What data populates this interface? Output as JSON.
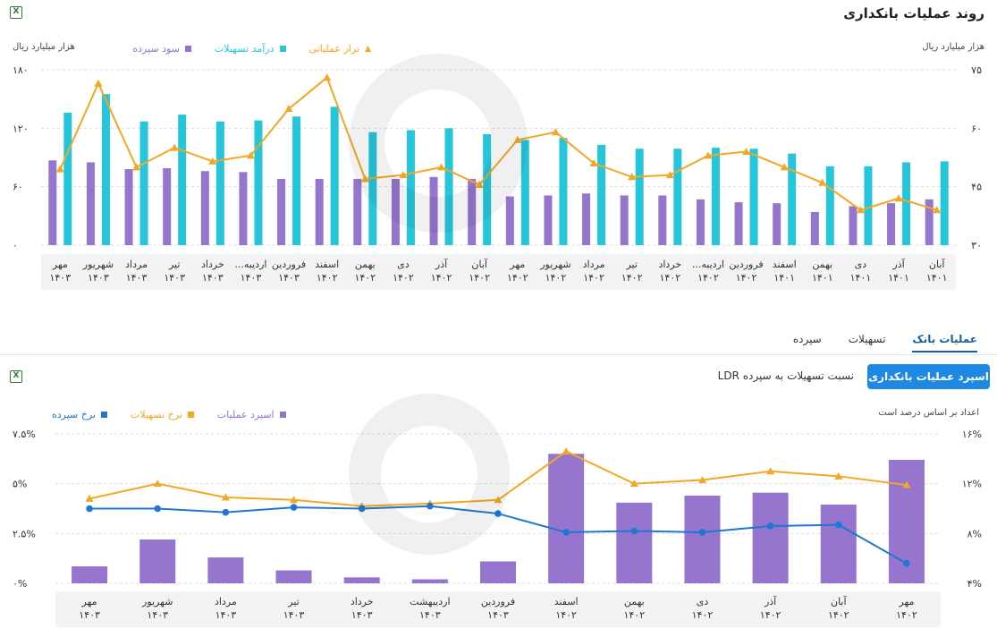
{
  "top": {
    "title": "روند عملیات بانکداری",
    "unit_left": "هزار میلیارد ریال",
    "unit_right": "هزار میلیارد ریال",
    "legend": [
      {
        "label": "تراز عملیاتی",
        "color": "#f5a623",
        "shape": "triangle"
      },
      {
        "label": "درآمد تسهیلات",
        "color": "#26c6da",
        "shape": "square"
      },
      {
        "label": "سود سپرده",
        "color": "#9575cd",
        "shape": "square"
      }
    ]
  },
  "tabs": [
    {
      "label": "سپرده",
      "active": false
    },
    {
      "label": "تسهیلات",
      "active": false
    },
    {
      "label": "عملیات بانک",
      "active": true
    }
  ],
  "bottom": {
    "primary_button": "اسپرد عملیات بانکداری",
    "secondary_link": "نسبت تسهیلات به سپرده LDR",
    "unit_note": "اعداد بر اساس درصد است",
    "legend": [
      {
        "label": "اسپرد عملیات",
        "color": "#9575cd",
        "shape": "square"
      },
      {
        "label": "نرخ تسهیلات",
        "color": "#f5a623",
        "shape": "square"
      },
      {
        "label": "نرخ سپرده",
        "color": "#1e78d2",
        "shape": "square"
      }
    ]
  },
  "chart_data": [
    {
      "type": "bar",
      "categories": [
        [
          "آبان",
          "۱۴۰۱"
        ],
        [
          "آذر",
          "۱۴۰۱"
        ],
        [
          "دی",
          "۱۴۰۱"
        ],
        [
          "بهمن",
          "۱۴۰۱"
        ],
        [
          "اسفند",
          "۱۴۰۱"
        ],
        [
          "فروردین",
          "۱۴۰۲"
        ],
        [
          "اردیبه...",
          "۱۴۰۲"
        ],
        [
          "خرداد",
          "۱۴۰۲"
        ],
        [
          "تیر",
          "۱۴۰۲"
        ],
        [
          "مرداد",
          "۱۴۰۲"
        ],
        [
          "شهریور",
          "۱۴۰۲"
        ],
        [
          "مهر",
          "۱۴۰۲"
        ],
        [
          "آبان",
          "۱۴۰۲"
        ],
        [
          "آذر",
          "۱۴۰۲"
        ],
        [
          "دی",
          "۱۴۰۲"
        ],
        [
          "بهمن",
          "۱۴۰۲"
        ],
        [
          "اسفند",
          "۱۴۰۲"
        ],
        [
          "فروردین",
          "۱۴۰۳"
        ],
        [
          "اردیبه...",
          "۱۴۰۳"
        ],
        [
          "خرداد",
          "۱۴۰۳"
        ],
        [
          "تیر",
          "۱۴۰۳"
        ],
        [
          "مرداد",
          "۱۴۰۳"
        ],
        [
          "شهریور",
          "۱۴۰۳"
        ],
        [
          "مهر",
          "۱۴۰۳"
        ]
      ],
      "category_order": "right-to-left",
      "left_axis": {
        "ticks": [
          "۰",
          "۶۰",
          "۱۲۰",
          "۱۸۰"
        ],
        "ylim": [
          0,
          180
        ]
      },
      "right_axis": {
        "ticks": [
          "۳۰",
          "۴۵",
          "۶۰",
          "۷۵"
        ],
        "ylim": [
          30,
          75
        ]
      },
      "series": [
        {
          "name": "سود سپرده",
          "type": "bar",
          "axis": "left",
          "color": "#9575cd",
          "values": [
            47,
            43,
            40,
            34,
            43,
            44,
            47,
            51,
            51,
            53,
            51,
            50,
            68,
            70,
            68,
            68,
            68,
            68,
            75,
            76,
            79,
            78,
            85,
            87
          ]
        },
        {
          "name": "درآمد تسهیلات",
          "type": "bar",
          "axis": "left",
          "color": "#26c6da",
          "values": [
            86,
            85,
            81,
            81,
            94,
            99,
            100,
            99,
            99,
            103,
            110,
            108,
            114,
            120,
            118,
            116,
            142,
            132,
            128,
            127,
            134,
            127,
            155,
            136
          ]
        },
        {
          "name": "تراز عملیاتی",
          "type": "line",
          "axis": "right",
          "color": "#f5a623",
          "marker": "triangle",
          "values": [
            39,
            42,
            39,
            46,
            50,
            54,
            53,
            48,
            47.5,
            51,
            59,
            57,
            45.5,
            50,
            48,
            47,
            73,
            65,
            53,
            51.5,
            55,
            50,
            71.5,
            49.5
          ]
        }
      ]
    },
    {
      "type": "bar",
      "categories": [
        [
          "مهر",
          "۱۴۰۲"
        ],
        [
          "آبان",
          "۱۴۰۲"
        ],
        [
          "آذر",
          "۱۴۰۲"
        ],
        [
          "دی",
          "۱۴۰۲"
        ],
        [
          "بهمن",
          "۱۴۰۲"
        ],
        [
          "اسفند",
          "۱۴۰۲"
        ],
        [
          "فروردین",
          "۱۴۰۳"
        ],
        [
          "اردیبهشت",
          "۱۴۰۳"
        ],
        [
          "خرداد",
          "۱۴۰۳"
        ],
        [
          "تیر",
          "۱۴۰۳"
        ],
        [
          "مرداد",
          "۱۴۰۳"
        ],
        [
          "شهریور",
          "۱۴۰۳"
        ],
        [
          "مهر",
          "۱۴۰۳"
        ]
      ],
      "category_order": "right-to-left",
      "left_axis": {
        "ticks": [
          "۰%",
          "۲.۵%",
          "۵%",
          "۷.۵%"
        ],
        "ylim": [
          0,
          7.5
        ]
      },
      "right_axis": {
        "ticks": [
          "۴%",
          "۸%",
          "۱۲%",
          "۱۶%"
        ],
        "ylim": [
          4,
          16
        ]
      },
      "series": [
        {
          "name": "اسپرد عملیات",
          "type": "bar",
          "axis": "left",
          "color": "#9575cd",
          "values": [
            6.2,
            3.95,
            4.55,
            4.4,
            4.05,
            6.5,
            1.1,
            0.2,
            0.3,
            0.65,
            1.3,
            2.2,
            0.85
          ]
        },
        {
          "name": "نرخ تسهیلات",
          "type": "line",
          "axis": "right",
          "color": "#f5a623",
          "marker": "triangle",
          "values": [
            11.9,
            12.6,
            13.0,
            12.3,
            12.0,
            14.6,
            10.7,
            10.4,
            10.2,
            10.7,
            10.9,
            12.0,
            10.8
          ]
        },
        {
          "name": "نرخ سپرده",
          "type": "line",
          "axis": "right",
          "color": "#1e78d2",
          "marker": "circle",
          "values": [
            5.6,
            8.7,
            8.6,
            8.1,
            8.2,
            8.1,
            9.6,
            10.2,
            10.0,
            10.1,
            9.7,
            10.0,
            10.0
          ]
        }
      ]
    }
  ]
}
